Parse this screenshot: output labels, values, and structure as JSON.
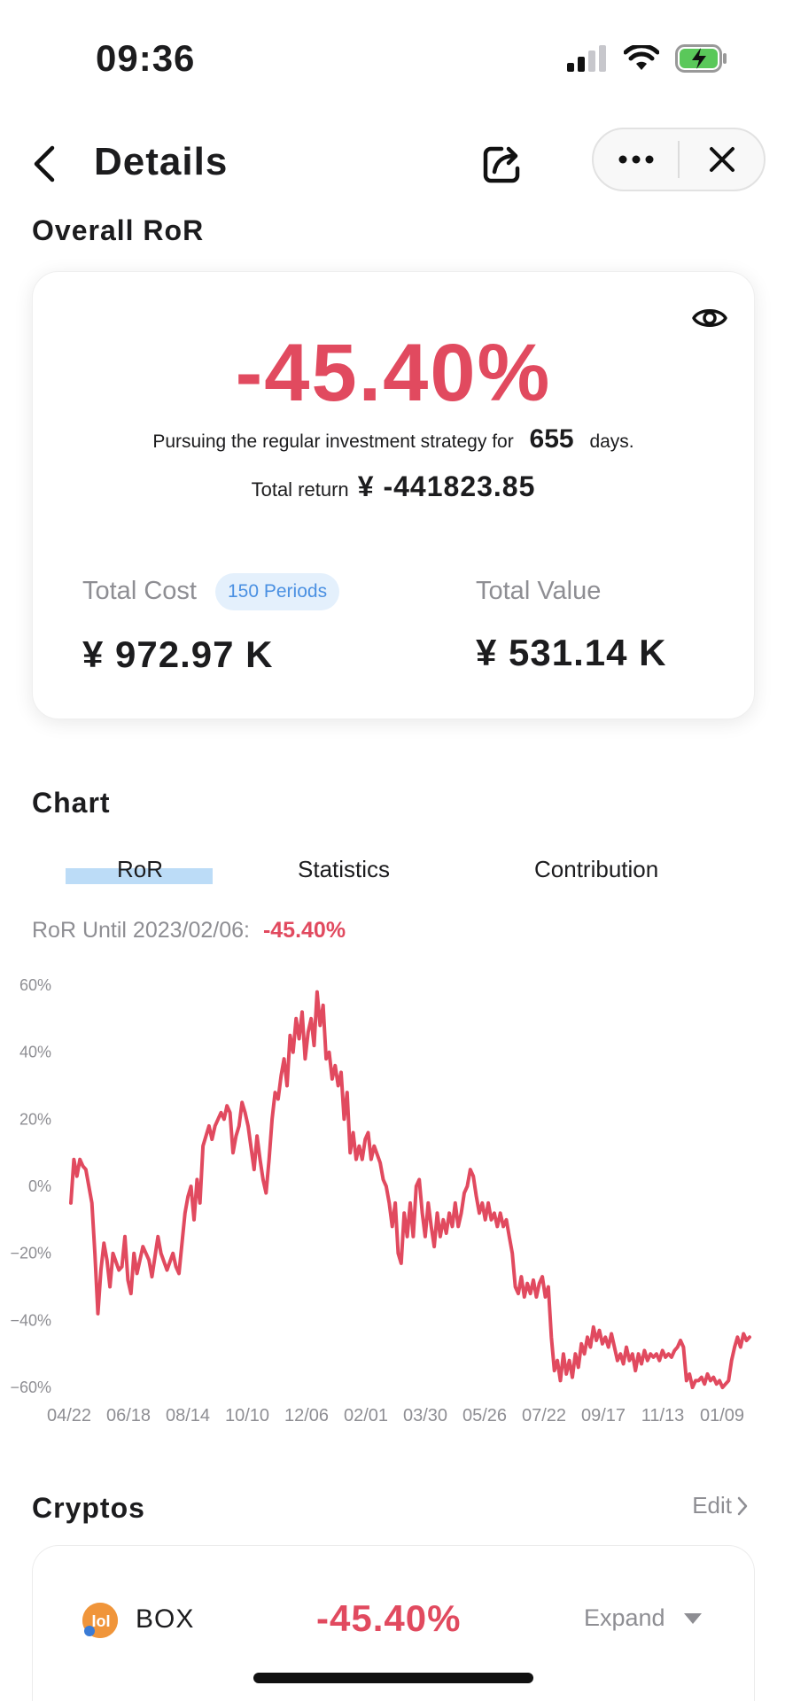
{
  "status": {
    "time": "09:36"
  },
  "nav": {
    "title": "Details"
  },
  "overall": {
    "section_title": "Overall RoR",
    "ror": "-45.40%",
    "pursue_prefix": "Pursuing the regular investment strategy for",
    "days": "655",
    "pursue_suffix": "days.",
    "total_return_label": "Total return",
    "total_return_value": "¥ -441823.85",
    "total_cost_label": "Total Cost",
    "periods_badge": "150 Periods",
    "total_cost_value": "¥ 972.97 K",
    "total_value_label": "Total Value",
    "total_value_value": "¥ 531.14 K"
  },
  "chart_section": {
    "title": "Chart",
    "tabs": [
      "RoR",
      "Statistics",
      "Contribution"
    ],
    "active_tab": "RoR",
    "ror_until_label": "RoR Until 2023/02/06:",
    "ror_until_value": "-45.40%"
  },
  "colors": {
    "accent_red": "#e14a5f",
    "badge_blue": "#4a90e2",
    "tab_highlight": "#bcdcf7"
  },
  "chart_data": {
    "type": "line",
    "y_ticks": [
      "60%",
      "40%",
      "20%",
      "0%",
      "−20%",
      "−40%",
      "−60%"
    ],
    "ylim": [
      -60,
      60
    ],
    "x_ticks": [
      "04/22",
      "06/18",
      "08/14",
      "10/10",
      "12/06",
      "02/01",
      "03/30",
      "05/26",
      "07/22",
      "09/17",
      "11/13",
      "01/09"
    ],
    "grid": false,
    "series": [
      {
        "color": "#e14a5f",
        "points": [
          [
            0,
            -5
          ],
          [
            1,
            8
          ],
          [
            2,
            3
          ],
          [
            3,
            8
          ],
          [
            4,
            6
          ],
          [
            5,
            5
          ],
          [
            7,
            -5
          ],
          [
            8,
            -20
          ],
          [
            9,
            -38
          ],
          [
            10,
            -25
          ],
          [
            11,
            -17
          ],
          [
            12,
            -22
          ],
          [
            13,
            -30
          ],
          [
            14,
            -20
          ],
          [
            16,
            -25
          ],
          [
            17,
            -24
          ],
          [
            18,
            -15
          ],
          [
            19,
            -28
          ],
          [
            20,
            -32
          ],
          [
            21,
            -20
          ],
          [
            22,
            -26
          ],
          [
            24,
            -18
          ],
          [
            26,
            -22
          ],
          [
            27,
            -27
          ],
          [
            29,
            -15
          ],
          [
            30,
            -20
          ],
          [
            32,
            -25
          ],
          [
            34,
            -20
          ],
          [
            35,
            -24
          ],
          [
            36,
            -26
          ],
          [
            38,
            -8
          ],
          [
            39,
            -3
          ],
          [
            40,
            0
          ],
          [
            41,
            -10
          ],
          [
            42,
            2
          ],
          [
            43,
            -5
          ],
          [
            44,
            12
          ],
          [
            46,
            18
          ],
          [
            47,
            14
          ],
          [
            48,
            18
          ],
          [
            50,
            22
          ],
          [
            51,
            20
          ],
          [
            52,
            24
          ],
          [
            53,
            22
          ],
          [
            54,
            10
          ],
          [
            55,
            15
          ],
          [
            56,
            18
          ],
          [
            57,
            25
          ],
          [
            58,
            22
          ],
          [
            59,
            18
          ],
          [
            61,
            5
          ],
          [
            62,
            15
          ],
          [
            63,
            8
          ],
          [
            64,
            2
          ],
          [
            65,
            -2
          ],
          [
            66,
            8
          ],
          [
            67,
            20
          ],
          [
            68,
            28
          ],
          [
            69,
            26
          ],
          [
            70,
            33
          ],
          [
            71,
            38
          ],
          [
            72,
            30
          ],
          [
            73,
            45
          ],
          [
            74,
            40
          ],
          [
            75,
            50
          ],
          [
            76,
            44
          ],
          [
            77,
            52
          ],
          [
            78,
            38
          ],
          [
            79,
            46
          ],
          [
            80,
            50
          ],
          [
            81,
            42
          ],
          [
            82,
            58
          ],
          [
            83,
            48
          ],
          [
            84,
            54
          ],
          [
            85,
            38
          ],
          [
            86,
            40
          ],
          [
            87,
            32
          ],
          [
            88,
            36
          ],
          [
            89,
            30
          ],
          [
            90,
            34
          ],
          [
            91,
            20
          ],
          [
            92,
            28
          ],
          [
            93,
            10
          ],
          [
            94,
            16
          ],
          [
            95,
            8
          ],
          [
            96,
            12
          ],
          [
            97,
            8
          ],
          [
            98,
            14
          ],
          [
            99,
            16
          ],
          [
            100,
            8
          ],
          [
            101,
            12
          ],
          [
            103,
            7
          ],
          [
            104,
            2
          ],
          [
            105,
            0
          ],
          [
            106,
            -5
          ],
          [
            107,
            -12
          ],
          [
            108,
            -5
          ],
          [
            109,
            -20
          ],
          [
            110,
            -23
          ],
          [
            111,
            -8
          ],
          [
            112,
            -15
          ],
          [
            113,
            -5
          ],
          [
            114,
            -15
          ],
          [
            115,
            0
          ],
          [
            116,
            2
          ],
          [
            117,
            -8
          ],
          [
            118,
            -15
          ],
          [
            119,
            -5
          ],
          [
            120,
            -12
          ],
          [
            121,
            -18
          ],
          [
            122,
            -8
          ],
          [
            123,
            -15
          ],
          [
            124,
            -10
          ],
          [
            125,
            -14
          ],
          [
            126,
            -8
          ],
          [
            127,
            -12
          ],
          [
            128,
            -5
          ],
          [
            129,
            -12
          ],
          [
            130,
            -8
          ],
          [
            131,
            -2
          ],
          [
            132,
            0
          ],
          [
            133,
            5
          ],
          [
            134,
            3
          ],
          [
            135,
            -3
          ],
          [
            136,
            -8
          ],
          [
            137,
            -5
          ],
          [
            138,
            -10
          ],
          [
            139,
            -5
          ],
          [
            140,
            -10
          ],
          [
            141,
            -8
          ],
          [
            142,
            -12
          ],
          [
            143,
            -8
          ],
          [
            144,
            -12
          ],
          [
            145,
            -10
          ],
          [
            146,
            -15
          ],
          [
            147,
            -20
          ],
          [
            148,
            -30
          ],
          [
            149,
            -32
          ],
          [
            150,
            -27
          ],
          [
            151,
            -33
          ],
          [
            152,
            -29
          ],
          [
            153,
            -32
          ],
          [
            154,
            -28
          ],
          [
            155,
            -33
          ],
          [
            156,
            -29
          ],
          [
            157,
            -27
          ],
          [
            158,
            -33
          ],
          [
            159,
            -30
          ],
          [
            160,
            -45
          ],
          [
            161,
            -55
          ],
          [
            162,
            -52
          ],
          [
            163,
            -58
          ],
          [
            164,
            -50
          ],
          [
            165,
            -56
          ],
          [
            166,
            -52
          ],
          [
            167,
            -57
          ],
          [
            168,
            -50
          ],
          [
            169,
            -54
          ],
          [
            170,
            -47
          ],
          [
            171,
            -50
          ],
          [
            172,
            -45
          ],
          [
            173,
            -48
          ],
          [
            174,
            -42
          ],
          [
            175,
            -46
          ],
          [
            176,
            -43
          ],
          [
            177,
            -47
          ],
          [
            178,
            -45
          ],
          [
            179,
            -48
          ],
          [
            180,
            -44
          ],
          [
            181,
            -48
          ],
          [
            182,
            -52
          ],
          [
            183,
            -50
          ],
          [
            184,
            -53
          ],
          [
            185,
            -48
          ],
          [
            186,
            -52
          ],
          [
            187,
            -50
          ],
          [
            188,
            -55
          ],
          [
            189,
            -50
          ],
          [
            190,
            -53
          ],
          [
            191,
            -49
          ],
          [
            192,
            -52
          ],
          [
            193,
            -50
          ],
          [
            194,
            -51
          ],
          [
            195,
            -50
          ],
          [
            196,
            -52
          ],
          [
            197,
            -49
          ],
          [
            198,
            -51
          ],
          [
            199,
            -50
          ],
          [
            200,
            -51
          ],
          [
            201,
            -49
          ],
          [
            202,
            -48
          ],
          [
            203,
            -46
          ],
          [
            204,
            -48
          ],
          [
            205,
            -58
          ],
          [
            206,
            -56
          ],
          [
            207,
            -60
          ],
          [
            208,
            -58
          ],
          [
            209,
            -58
          ],
          [
            210,
            -57
          ],
          [
            211,
            -59
          ],
          [
            212,
            -56
          ],
          [
            213,
            -58
          ],
          [
            214,
            -57
          ],
          [
            215,
            -59
          ],
          [
            216,
            -58
          ],
          [
            217,
            -60
          ],
          [
            218,
            -59
          ],
          [
            219,
            -58
          ],
          [
            220,
            -52
          ],
          [
            221,
            -48
          ],
          [
            222,
            -45
          ],
          [
            223,
            -48
          ],
          [
            224,
            -44
          ],
          [
            225,
            -46
          ],
          [
            226,
            -45
          ]
        ]
      }
    ]
  },
  "cryptos": {
    "title": "Cryptos",
    "edit_label": "Edit",
    "items": [
      {
        "icon": "box-coin-icon",
        "name": "BOX",
        "ror": "-45.40%",
        "expand_label": "Expand"
      }
    ]
  }
}
